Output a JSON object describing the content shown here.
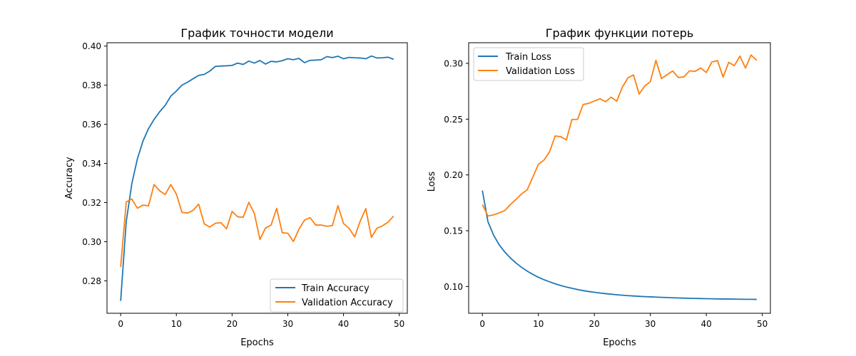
{
  "chart_data": [
    {
      "type": "line",
      "title": "График точности модели",
      "xlabel": "Epochs",
      "ylabel": "Accuracy",
      "xlim": [
        -2.45,
        51.45
      ],
      "ylim": [
        0.2634,
        0.4017
      ],
      "xticks": [
        0,
        10,
        20,
        30,
        40,
        50
      ],
      "yticks": [
        0.28,
        0.3,
        0.32,
        0.34,
        0.36,
        0.38,
        0.4
      ],
      "ytick_labels": [
        "0.28",
        "0.30",
        "0.32",
        "0.34",
        "0.36",
        "0.38",
        "0.40"
      ],
      "legend_position": "lower-right",
      "grid": false,
      "x": [
        0,
        1,
        2,
        3,
        4,
        5,
        6,
        7,
        8,
        9,
        10,
        11,
        12,
        13,
        14,
        15,
        16,
        17,
        18,
        19,
        20,
        21,
        22,
        23,
        24,
        25,
        26,
        27,
        28,
        29,
        30,
        31,
        32,
        33,
        34,
        35,
        36,
        37,
        38,
        39,
        40,
        41,
        42,
        43,
        44,
        45,
        46,
        47,
        48,
        49
      ],
      "series": [
        {
          "name": "Train Accuracy",
          "color": "#1f77b4",
          "values": [
            0.2697,
            0.3102,
            0.3296,
            0.3423,
            0.3514,
            0.3578,
            0.3625,
            0.3664,
            0.3697,
            0.3744,
            0.377,
            0.38,
            0.3815,
            0.3833,
            0.385,
            0.3855,
            0.3872,
            0.3896,
            0.3898,
            0.3899,
            0.3901,
            0.3913,
            0.3906,
            0.3923,
            0.3913,
            0.3926,
            0.3908,
            0.3922,
            0.3919,
            0.3925,
            0.3935,
            0.393,
            0.3937,
            0.3915,
            0.3927,
            0.3928,
            0.393,
            0.3946,
            0.3941,
            0.3948,
            0.3935,
            0.3942,
            0.394,
            0.3939,
            0.3935,
            0.3949,
            0.3939,
            0.394,
            0.3943,
            0.3932
          ]
        },
        {
          "name": "Validation Accuracy",
          "color": "#ff7f0e",
          "values": [
            0.2871,
            0.3203,
            0.3218,
            0.3171,
            0.3187,
            0.3183,
            0.3292,
            0.326,
            0.3241,
            0.3292,
            0.3243,
            0.315,
            0.3146,
            0.316,
            0.3192,
            0.3091,
            0.3075,
            0.3094,
            0.3097,
            0.3066,
            0.3155,
            0.3127,
            0.3125,
            0.3201,
            0.3144,
            0.3011,
            0.307,
            0.3085,
            0.317,
            0.3046,
            0.3043,
            0.3001,
            0.3064,
            0.311,
            0.3123,
            0.3085,
            0.3085,
            0.3079,
            0.3082,
            0.3184,
            0.3093,
            0.3068,
            0.3025,
            0.3105,
            0.3169,
            0.3022,
            0.3069,
            0.3081,
            0.31,
            0.3131
          ]
        }
      ]
    },
    {
      "type": "line",
      "title": "График функции потерь",
      "xlabel": "Epochs",
      "ylabel": "Loss",
      "xlim": [
        -2.45,
        51.45
      ],
      "ylim": [
        0.076,
        0.3185
      ],
      "xticks": [
        0,
        10,
        20,
        30,
        40,
        50
      ],
      "yticks": [
        0.1,
        0.15,
        0.2,
        0.25,
        0.3
      ],
      "ytick_labels": [
        "0.10",
        "0.15",
        "0.20",
        "0.25",
        "0.30"
      ],
      "legend_position": "upper-left",
      "grid": false,
      "x": [
        0,
        1,
        2,
        3,
        4,
        5,
        6,
        7,
        8,
        9,
        10,
        11,
        12,
        13,
        14,
        15,
        16,
        17,
        18,
        19,
        20,
        21,
        22,
        23,
        24,
        25,
        26,
        27,
        28,
        29,
        30,
        31,
        32,
        33,
        34,
        35,
        36,
        37,
        38,
        39,
        40,
        41,
        42,
        43,
        44,
        45,
        46,
        47,
        48,
        49
      ],
      "series": [
        {
          "name": "Train Loss",
          "color": "#1f77b4",
          "values": [
            0.186,
            0.158,
            0.1461,
            0.1374,
            0.1309,
            0.1256,
            0.1211,
            0.1172,
            0.1138,
            0.1109,
            0.1083,
            0.1061,
            0.1042,
            0.1024,
            0.1009,
            0.0995,
            0.0984,
            0.0973,
            0.0963,
            0.0955,
            0.0948,
            0.0942,
            0.0936,
            0.0931,
            0.0926,
            0.0922,
            0.0918,
            0.0915,
            0.0912,
            0.0909,
            0.0907,
            0.0905,
            0.0903,
            0.0901,
            0.0899,
            0.0897,
            0.0896,
            0.0894,
            0.0893,
            0.0892,
            0.0891,
            0.089,
            0.0889,
            0.0888,
            0.0888,
            0.0887,
            0.0886,
            0.0885,
            0.0885,
            0.0884
          ]
        },
        {
          "name": "Validation Loss",
          "color": "#ff7f0e",
          "values": [
            0.1735,
            0.1632,
            0.1642,
            0.166,
            0.168,
            0.1734,
            0.178,
            0.183,
            0.1866,
            0.1979,
            0.2095,
            0.2133,
            0.2207,
            0.2349,
            0.2343,
            0.2314,
            0.2497,
            0.2498,
            0.2631,
            0.2642,
            0.2662,
            0.2683,
            0.2656,
            0.2697,
            0.2661,
            0.2787,
            0.287,
            0.2896,
            0.2725,
            0.2796,
            0.2836,
            0.3027,
            0.2864,
            0.2898,
            0.2932,
            0.2873,
            0.2879,
            0.2933,
            0.2928,
            0.2958,
            0.2918,
            0.3013,
            0.3025,
            0.2877,
            0.3009,
            0.2979,
            0.3065,
            0.2958,
            0.3075,
            0.3027
          ]
        }
      ]
    }
  ]
}
